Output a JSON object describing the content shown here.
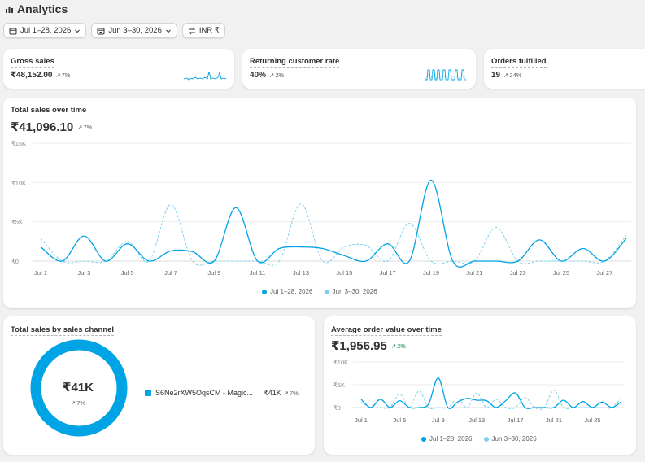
{
  "page": {
    "title": "Analytics",
    "title_icon": "bar-chart-icon"
  },
  "filters": {
    "date_range": "Jul 1–28, 2026",
    "compare_range": "Jun 3–30, 2026",
    "currency": "INR ₹"
  },
  "kpis": [
    {
      "label": "Gross sales",
      "value": "₹48,152.00",
      "delta": "7%",
      "direction": "up"
    },
    {
      "label": "Returning customer rate",
      "value": "40%",
      "delta": "2%",
      "direction": "up"
    },
    {
      "label": "Orders fulfilled",
      "value": "19",
      "delta": "24%",
      "direction": "up"
    }
  ],
  "total_sales": {
    "title": "Total sales over time",
    "value": "₹41,096.10",
    "delta": "7%"
  },
  "sales_channel": {
    "title": "Total sales by sales channel",
    "center_value": "₹41K",
    "center_delta": "7%",
    "channel_name": "S6Ne2rXW5OqsCM - Magic...",
    "channel_value": "₹41K",
    "channel_delta": "7%"
  },
  "aov": {
    "title": "Average order value over time",
    "value": "₹1,956.95",
    "delta": "2%"
  },
  "colors": {
    "primary": "#00a4e4",
    "secondary": "#7fd0f0",
    "grid": "#ebebeb",
    "positive": "#1a8a4a"
  },
  "chart_data": [
    {
      "type": "line",
      "title": "Total sales over time",
      "yticks": [
        "₹0",
        "₹5K",
        "₹10K",
        "₹15K"
      ],
      "ylim": [
        0,
        15000
      ],
      "xticks": [
        "Jul 1",
        "Jul 3",
        "Jul 5",
        "Jul 7",
        "Jul 9",
        "Jul 11",
        "Jul 13",
        "Jul 15",
        "Jul 17",
        "Jul 19",
        "Jul 21",
        "Jul 23",
        "Jul 25",
        "Jul 27"
      ],
      "x": [
        1,
        2,
        3,
        4,
        5,
        6,
        7,
        8,
        9,
        10,
        11,
        12,
        13,
        14,
        15,
        16,
        17,
        18,
        19,
        20,
        21,
        22,
        23,
        24,
        25,
        26,
        27,
        28
      ],
      "series": [
        {
          "name": "Jul 1–28, 2026",
          "style": "solid",
          "values": [
            1800,
            0,
            3200,
            0,
            2200,
            0,
            1300,
            1200,
            0,
            6800,
            0,
            1600,
            1800,
            1600,
            700,
            0,
            2200,
            0,
            10300,
            0,
            0,
            0,
            0,
            2700,
            0,
            1600,
            0,
            2900
          ]
        },
        {
          "name": "Jun 3–30, 2026",
          "style": "dashed",
          "values": [
            2900,
            0,
            0,
            0,
            2500,
            0,
            7200,
            0,
            0,
            0,
            0,
            0,
            7300,
            0,
            1800,
            2000,
            0,
            4800,
            0,
            0,
            0,
            4300,
            0,
            0,
            0,
            0,
            0,
            3300
          ]
        }
      ],
      "legend": [
        "Jul 1–28, 2026",
        "Jun 3–30, 2026"
      ]
    },
    {
      "type": "pie",
      "title": "Total sales by sales channel",
      "categories": [
        "S6Ne2rXW5OqsCM - Magic..."
      ],
      "values": [
        41000
      ]
    },
    {
      "type": "line",
      "title": "Average order value over time",
      "yticks": [
        "₹0",
        "₹5K",
        "₹10K"
      ],
      "ylim": [
        0,
        10000
      ],
      "xticks": [
        "Jul 1",
        "Jul 5",
        "Jul 9",
        "Jul 13",
        "Jul 17",
        "Jul 21",
        "Jul 25"
      ],
      "x": [
        1,
        2,
        3,
        4,
        5,
        6,
        7,
        8,
        9,
        10,
        11,
        12,
        13,
        14,
        15,
        16,
        17,
        18,
        19,
        20,
        21,
        22,
        23,
        24,
        25,
        26,
        27,
        28
      ],
      "series": [
        {
          "name": "Jul 1–28, 2026",
          "style": "solid",
          "values": [
            1800,
            0,
            1800,
            0,
            1500,
            0,
            0,
            800,
            6500,
            0,
            1200,
            2000,
            1600,
            1500,
            0,
            1500,
            3200,
            0,
            0,
            0,
            0,
            1600,
            0,
            1300,
            0,
            1200,
            0,
            1300
          ]
        },
        {
          "name": "Jun 3–30, 2026",
          "style": "dashed",
          "values": [
            1200,
            0,
            0,
            0,
            3000,
            0,
            3600,
            0,
            0,
            0,
            2000,
            0,
            3200,
            0,
            1800,
            0,
            0,
            2200,
            0,
            0,
            3800,
            0,
            0,
            0,
            0,
            0,
            0,
            2200
          ]
        }
      ],
      "legend": [
        "Jul 1–28, 2026",
        "Jun 3–30, 2026"
      ]
    }
  ]
}
